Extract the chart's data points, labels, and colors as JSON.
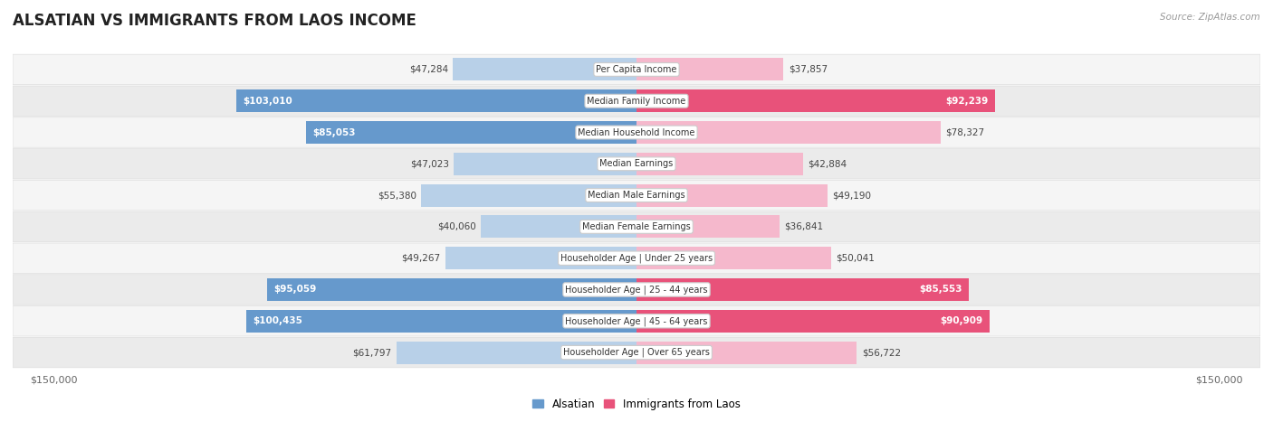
{
  "title": "ALSATIAN VS IMMIGRANTS FROM LAOS INCOME",
  "source": "Source: ZipAtlas.com",
  "categories": [
    "Per Capita Income",
    "Median Family Income",
    "Median Household Income",
    "Median Earnings",
    "Median Male Earnings",
    "Median Female Earnings",
    "Householder Age | Under 25 years",
    "Householder Age | 25 - 44 years",
    "Householder Age | 45 - 64 years",
    "Householder Age | Over 65 years"
  ],
  "alsatian_values": [
    47284,
    103010,
    85053,
    47023,
    55380,
    40060,
    49267,
    95059,
    100435,
    61797
  ],
  "laos_values": [
    37857,
    92239,
    78327,
    42884,
    49190,
    36841,
    50041,
    85553,
    90909,
    56722
  ],
  "alsatian_labels": [
    "$47,284",
    "$103,010",
    "$85,053",
    "$47,023",
    "$55,380",
    "$40,060",
    "$49,267",
    "$95,059",
    "$100,435",
    "$61,797"
  ],
  "laos_labels": [
    "$37,857",
    "$92,239",
    "$78,327",
    "$42,884",
    "$49,190",
    "$36,841",
    "$50,041",
    "$85,553",
    "$90,909",
    "$56,722"
  ],
  "alsatian_color_normal": "#b8d0e8",
  "alsatian_color_highlight": "#6699cc",
  "laos_color_normal": "#f5b8cc",
  "laos_color_highlight": "#e8527a",
  "max_value": 150000,
  "highlight_alsatian": [
    1,
    2,
    7,
    8
  ],
  "highlight_laos": [
    1,
    7,
    8
  ],
  "legend_alsatian": "Alsatian",
  "legend_laos": "Immigrants from Laos",
  "row_bg_light": "#f5f5f5",
  "row_bg_dark": "#ebebeb",
  "row_border_color": "#dddddd"
}
